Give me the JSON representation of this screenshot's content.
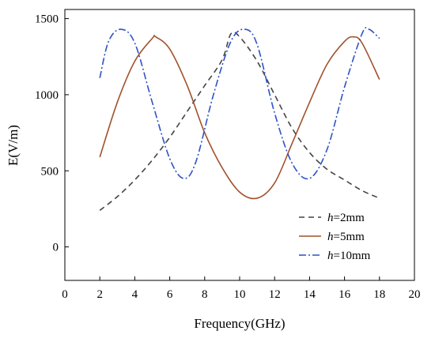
{
  "chart_data": {
    "type": "line",
    "xlabel": "Frequency(GHz)",
    "ylabel": "E(V/m)",
    "xlim": [
      0,
      20
    ],
    "ylim": [
      -220,
      1560
    ],
    "xticks": [
      0,
      2,
      4,
      6,
      8,
      10,
      12,
      14,
      16,
      18,
      20
    ],
    "yticks": [
      0,
      500,
      1000,
      1500
    ],
    "grid": false,
    "legend_position": "bottom-right",
    "series": [
      {
        "legend_prefix": "h",
        "legend_suffix": "=2mm",
        "color": "#444444",
        "dash": "7,5",
        "x": [
          2,
          3,
          4,
          5,
          6,
          7,
          8,
          9,
          9.5,
          10,
          11,
          12,
          13,
          14,
          15,
          16,
          17,
          18
        ],
        "y": [
          240,
          330,
          440,
          570,
          720,
          890,
          1060,
          1230,
          1400,
          1380,
          1220,
          1000,
          780,
          620,
          510,
          440,
          370,
          320
        ]
      },
      {
        "legend_prefix": "h",
        "legend_suffix": "=5mm",
        "color": "#a0522d",
        "dash": "",
        "x": [
          2,
          3,
          4,
          5,
          5.2,
          6,
          7,
          8,
          9,
          10,
          11,
          12,
          13,
          14,
          15,
          16,
          16.5,
          17,
          18
        ],
        "y": [
          590,
          950,
          1220,
          1370,
          1380,
          1300,
          1060,
          750,
          520,
          360,
          320,
          420,
          680,
          950,
          1200,
          1350,
          1380,
          1340,
          1100
        ]
      },
      {
        "legend_prefix": "h",
        "legend_suffix": "=10mm",
        "color": "#2f52c8",
        "dash": "9,3,2,3",
        "x": [
          2,
          2.5,
          3.2,
          4,
          5,
          6,
          6.8,
          7.5,
          8.5,
          9.5,
          10.3,
          11,
          12,
          13,
          14,
          15,
          16,
          17,
          17.4,
          18
        ],
        "y": [
          1110,
          1350,
          1430,
          1340,
          950,
          580,
          450,
          560,
          1000,
          1350,
          1430,
          1330,
          880,
          550,
          450,
          640,
          1050,
          1400,
          1430,
          1370
        ]
      }
    ]
  }
}
